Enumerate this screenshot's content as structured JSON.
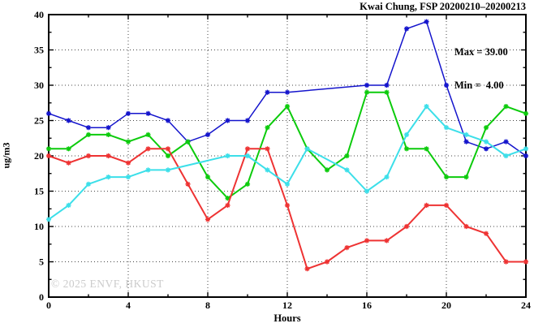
{
  "chart_data": {
    "type": "line",
    "title": "Kwai Chung, FSP 20200210–20200213",
    "xlabel": "Hours",
    "ylabel": "ug/m3",
    "xlim": [
      0,
      24
    ],
    "ylim": [
      0,
      40
    ],
    "x_tick_values": [
      0,
      4,
      8,
      12,
      16,
      20,
      24
    ],
    "x_tick_labels": [
      "0",
      "4",
      "8",
      "12",
      "16",
      "20",
      "24"
    ],
    "x_minor_step": 2,
    "y_tick_values": [
      0,
      5,
      10,
      15,
      20,
      25,
      30,
      35,
      40
    ],
    "y_tick_labels": [
      "0",
      "5",
      "10",
      "15",
      "20",
      "25",
      "30",
      "35",
      "40"
    ],
    "y_minor_step": 2.5,
    "grid": {
      "x_values": [
        4,
        8,
        12,
        16,
        20
      ],
      "y_values": [
        5,
        10,
        15,
        20,
        25,
        30,
        35
      ]
    },
    "legend": {
      "position": "top-right",
      "max_line": "Max = 39.00",
      "min_line": "Min =  4.00"
    },
    "watermark": "© 2025 ENVF, HKUST",
    "series": [
      {
        "name": "blue-line",
        "color": "#1414cc",
        "width": 1.5,
        "points": [
          [
            0,
            26
          ],
          [
            1,
            25
          ],
          [
            2,
            24
          ],
          [
            3,
            24
          ],
          [
            4,
            26
          ],
          [
            5,
            26
          ],
          [
            6,
            25
          ],
          [
            7,
            22
          ],
          [
            8,
            23
          ],
          [
            9,
            25
          ],
          [
            10,
            25
          ],
          [
            11,
            29
          ],
          [
            12,
            29
          ],
          [
            16,
            30
          ],
          [
            17,
            30
          ],
          [
            18,
            38
          ],
          [
            19,
            39
          ],
          [
            20,
            30
          ],
          [
            21,
            22
          ],
          [
            22,
            21
          ],
          [
            23,
            22
          ],
          [
            24,
            20
          ]
        ]
      },
      {
        "name": "green-line",
        "color": "#0ccb0c",
        "width": 2.0,
        "points": [
          [
            0,
            21
          ],
          [
            1,
            21
          ],
          [
            2,
            23
          ],
          [
            3,
            23
          ],
          [
            4,
            22
          ],
          [
            5,
            23
          ],
          [
            6,
            20
          ],
          [
            7,
            22
          ],
          [
            8,
            17
          ],
          [
            9,
            14
          ],
          [
            10,
            16
          ],
          [
            11,
            24
          ],
          [
            12,
            27
          ],
          [
            13,
            21
          ],
          [
            14,
            18
          ],
          [
            15,
            20
          ],
          [
            16,
            29
          ],
          [
            17,
            29
          ],
          [
            18,
            21
          ],
          [
            19,
            21
          ],
          [
            20,
            17
          ],
          [
            21,
            17
          ],
          [
            22,
            24
          ],
          [
            23,
            27
          ],
          [
            24,
            26
          ]
        ]
      },
      {
        "name": "red-line",
        "color": "#ee3333",
        "width": 2.0,
        "points": [
          [
            0,
            20
          ],
          [
            1,
            19
          ],
          [
            2,
            20
          ],
          [
            3,
            20
          ],
          [
            4,
            19
          ],
          [
            5,
            21
          ],
          [
            6,
            21
          ],
          [
            7,
            16
          ],
          [
            8,
            11
          ],
          [
            9,
            13
          ],
          [
            10,
            21
          ],
          [
            11,
            21
          ],
          [
            12,
            13
          ],
          [
            13,
            4
          ],
          [
            14,
            5
          ],
          [
            15,
            7
          ],
          [
            16,
            8
          ],
          [
            17,
            8
          ],
          [
            18,
            10
          ],
          [
            19,
            13
          ],
          [
            20,
            13
          ],
          [
            21,
            10
          ],
          [
            22,
            9
          ],
          [
            23,
            5
          ],
          [
            24,
            5
          ]
        ]
      },
      {
        "name": "cyan-line",
        "color": "#3cdfe9",
        "width": 2.0,
        "points": [
          [
            0,
            11
          ],
          [
            1,
            13
          ],
          [
            2,
            16
          ],
          [
            3,
            17
          ],
          [
            4,
            17
          ],
          [
            5,
            18
          ],
          [
            6,
            18
          ],
          [
            9,
            20
          ],
          [
            10,
            20
          ],
          [
            11,
            18
          ],
          [
            12,
            16
          ],
          [
            13,
            21
          ],
          [
            15,
            18
          ],
          [
            16,
            15
          ],
          [
            17,
            17
          ],
          [
            18,
            23
          ],
          [
            19,
            27
          ],
          [
            20,
            24
          ],
          [
            21,
            23
          ],
          [
            22,
            22
          ],
          [
            23,
            20
          ],
          [
            24,
            21
          ]
        ]
      }
    ]
  },
  "colors": {
    "frame": "#000000",
    "grid": "#444444",
    "watermark": "#cbcbcb"
  }
}
